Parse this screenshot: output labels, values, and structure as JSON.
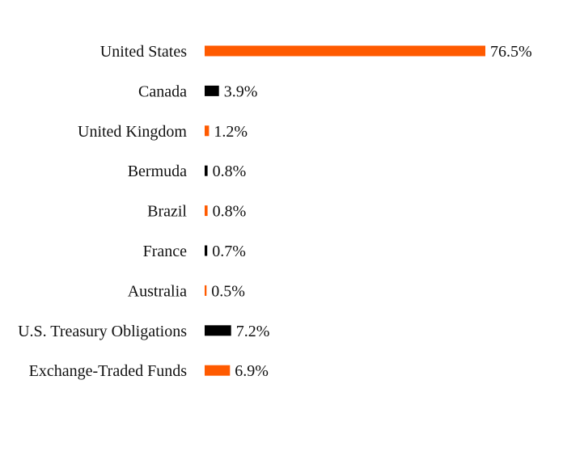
{
  "chart_data": {
    "type": "bar",
    "orientation": "horizontal",
    "categories": [
      "United States",
      "Canada",
      "United Kingdom",
      "Bermuda",
      "Brazil",
      "France",
      "Australia",
      "U.S. Treasury Obligations",
      "Exchange-Traded Funds"
    ],
    "values": [
      76.5,
      3.9,
      1.2,
      0.8,
      0.8,
      0.7,
      0.5,
      7.2,
      6.9
    ],
    "value_labels": [
      "76.5%",
      "3.9%",
      "1.2%",
      "0.8%",
      "0.8%",
      "0.7%",
      "0.5%",
      "7.2%",
      "6.9%"
    ],
    "colors": [
      "#ff5a00",
      "#000000",
      "#ff5a00",
      "#000000",
      "#ff5a00",
      "#000000",
      "#ff5a00",
      "#000000",
      "#ff5a00"
    ],
    "xlim": [
      0,
      76.5
    ],
    "title": "",
    "xlabel": "",
    "ylabel": "",
    "grid": false,
    "legend": "none"
  }
}
